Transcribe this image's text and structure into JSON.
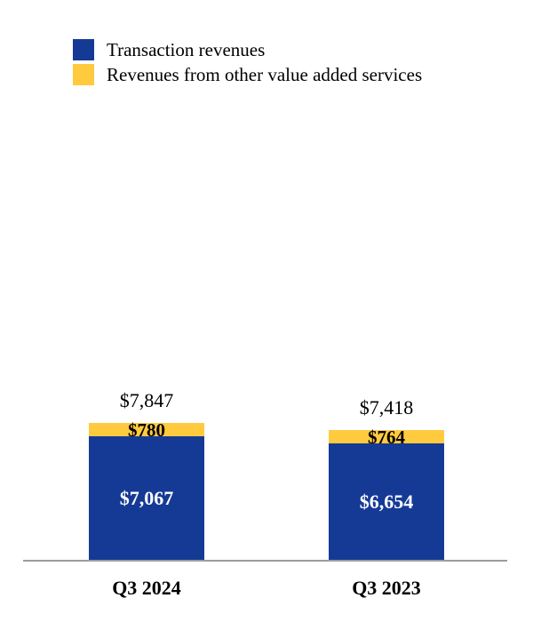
{
  "chart_data": {
    "type": "bar",
    "stacked": true,
    "title": "",
    "xlabel": "",
    "ylabel": "",
    "grid": false,
    "legend_position": "top-left",
    "axis_line_color": "#9d9d9d",
    "categories": [
      "Q3 2024",
      "Q3 2023"
    ],
    "series": [
      {
        "name": "Transaction revenues",
        "color": "#153a96",
        "values": [
          7067,
          6654
        ],
        "labels": [
          "$7,067",
          "$6,654"
        ]
      },
      {
        "name": "Revenues from other value added services",
        "color": "#ffca3e",
        "values": [
          780,
          764
        ],
        "labels": [
          "$780",
          "$764"
        ]
      }
    ],
    "totals": {
      "values": [
        7847,
        7418
      ],
      "labels": [
        "$7,847",
        "$7,418"
      ]
    }
  }
}
